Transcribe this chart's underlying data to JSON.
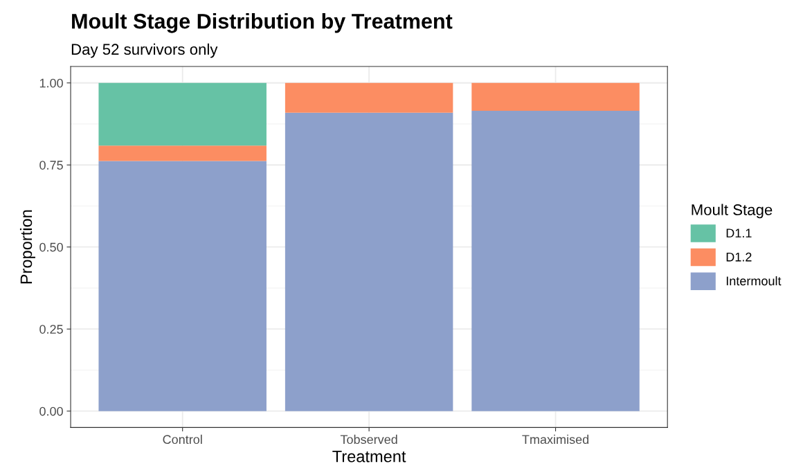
{
  "chart_data": {
    "type": "bar",
    "title": "Moult Stage Distribution by Treatment",
    "subtitle": "Day 52 survivors only",
    "xlabel": "Treatment",
    "ylabel": "Proportion",
    "legend_title": "Moult Stage",
    "categories": [
      "Control",
      "Tobserved",
      "Tmaximised"
    ],
    "stacked": true,
    "series": [
      {
        "name": "Intermoult",
        "color": "#8da0cb",
        "values": [
          0.762,
          0.909,
          0.915
        ]
      },
      {
        "name": "D1.2",
        "color": "#fc8d62",
        "values": [
          0.047,
          0.091,
          0.085
        ]
      },
      {
        "name": "D1.1",
        "color": "#66c2a5",
        "values": [
          0.191,
          0,
          0
        ]
      }
    ],
    "ylim": [
      -0.05,
      1.05
    ],
    "yticks": [
      {
        "value": 0,
        "label": "0.00"
      },
      {
        "value": 0.25,
        "label": "0.25"
      },
      {
        "value": 0.5,
        "label": "0.50"
      },
      {
        "value": 0.75,
        "label": "0.75"
      },
      {
        "value": 1,
        "label": "1.00"
      }
    ],
    "grid": true,
    "legend": "right"
  }
}
